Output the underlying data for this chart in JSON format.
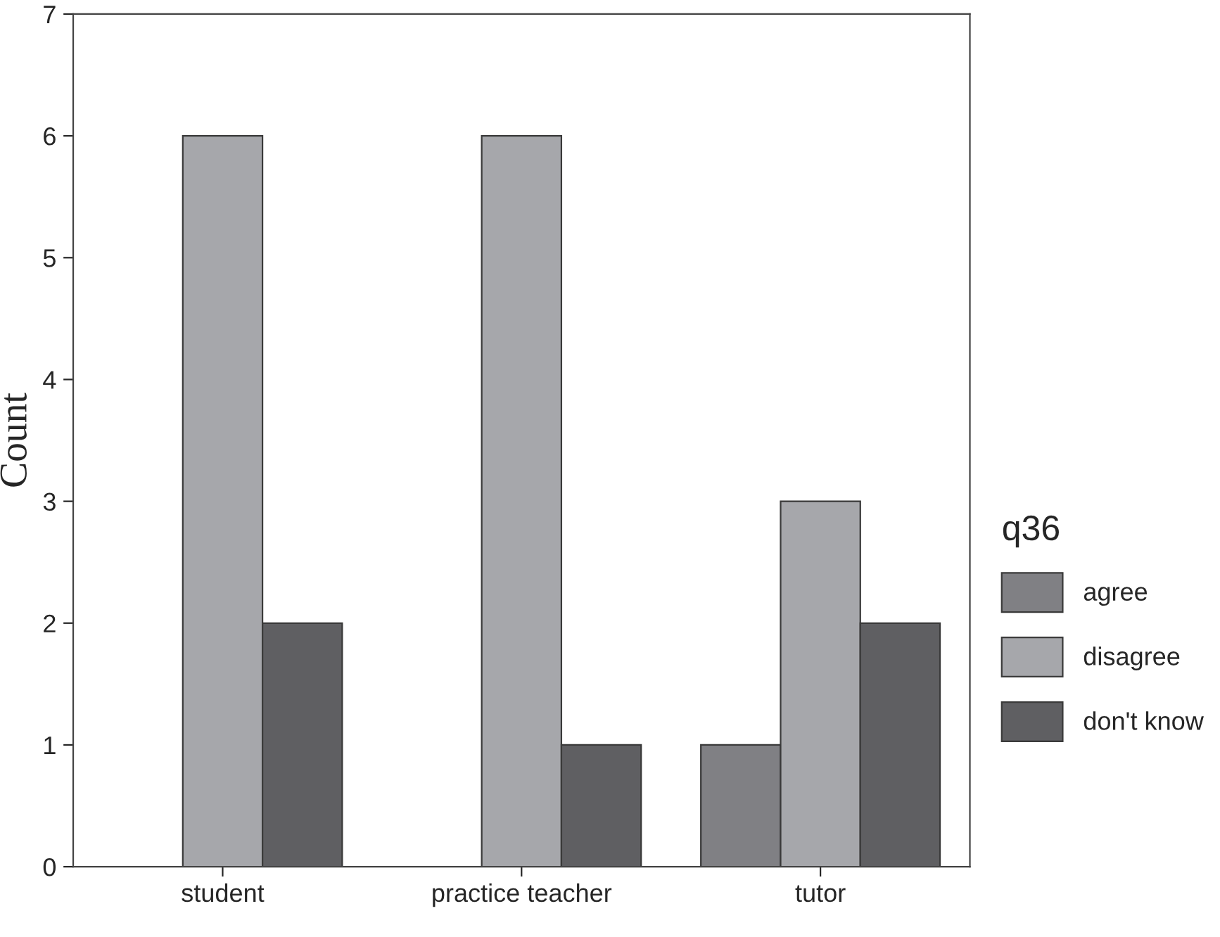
{
  "chart_data": {
    "type": "bar",
    "ylabel": "Count",
    "legend_title": "q36",
    "categories": [
      "student",
      "practice teacher",
      "tutor"
    ],
    "series": [
      {
        "name": "agree",
        "color": "#808084",
        "values": [
          null,
          null,
          1
        ]
      },
      {
        "name": "disagree",
        "color": "#a6a7ab",
        "values": [
          6,
          6,
          3
        ]
      },
      {
        "name": "don't know",
        "color": "#5f5f62",
        "values": [
          2,
          1,
          2
        ]
      }
    ],
    "ylim": [
      0,
      7
    ],
    "yticks": [
      0,
      1,
      2,
      3,
      4,
      5,
      6,
      7
    ],
    "grid": false,
    "legend": "right"
  }
}
